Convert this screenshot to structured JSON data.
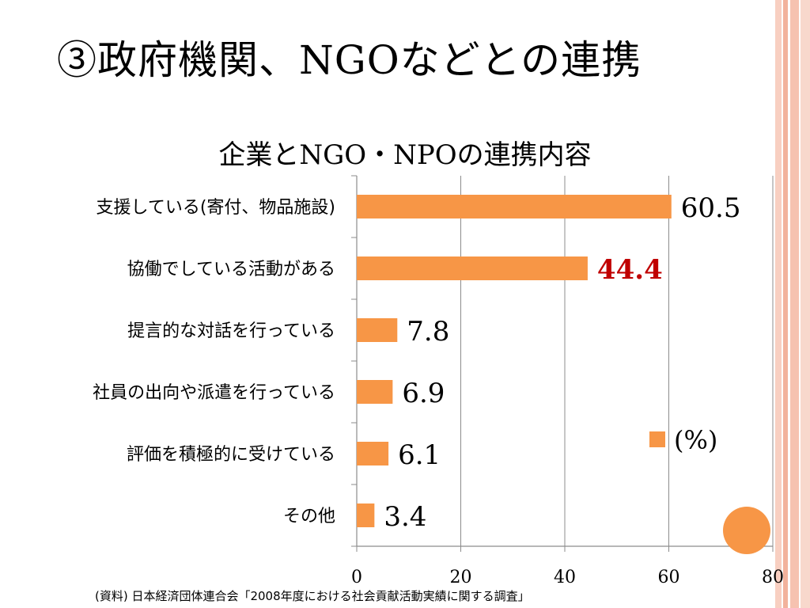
{
  "slide_title": "③政府機関、NGOなどとの連携",
  "colors": {
    "bar": "#f79646",
    "highlight_label": "#c00000",
    "stripe_light": "#f8cfc1",
    "stripe_mid": "#f2b29c",
    "stripe_dark": "#ef8f73"
  },
  "chart_data": {
    "type": "bar",
    "orientation": "horizontal",
    "title": "企業とNGO・NPOの連携内容",
    "categories": [
      "支援している(寄付、物品施設)",
      "協働でしている活動がある",
      "提言的な対話を行っている",
      "社員の出向や派遣を行っている",
      "評価を積極的に受けている",
      "その他"
    ],
    "values": [
      60.5,
      44.4,
      7.8,
      6.9,
      6.1,
      3.4
    ],
    "value_labels": [
      "60.5",
      "44.4",
      "7.8",
      "6.9",
      "6.1",
      "3.4"
    ],
    "highlight_index": 1,
    "xlim": [
      0,
      80
    ],
    "xticks": [
      "0",
      "20",
      "40",
      "60",
      "80"
    ],
    "xtick_values": [
      0,
      20,
      40,
      60,
      80
    ],
    "legend": {
      "label": "(%)",
      "position": "right"
    },
    "grid": true
  },
  "source": "(資料)  日本経済団体連合会「2008年度における社会貢献活動実績に関する調査」"
}
